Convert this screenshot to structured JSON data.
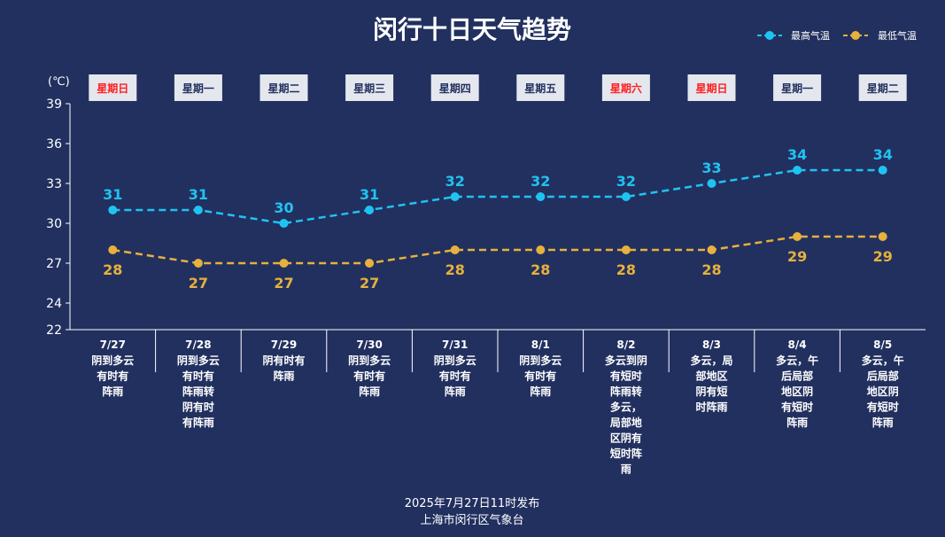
{
  "title": "闵行十日天气趋势",
  "legend": [
    {
      "name": "最高气温",
      "color": "#1fc3f2"
    },
    {
      "name": "最低气温",
      "color": "#e6b13c"
    }
  ],
  "unit_label": "(℃)",
  "colors": {
    "weekend": "#ff1e1e",
    "weekday": "#22305f",
    "axis": "#ffffff"
  },
  "chart_data": {
    "type": "line",
    "categories": [
      "7/27",
      "7/28",
      "7/29",
      "7/30",
      "7/31",
      "8/1",
      "8/2",
      "8/3",
      "8/4",
      "8/5"
    ],
    "weekdays": [
      "星期日",
      "星期一",
      "星期二",
      "星期三",
      "星期四",
      "星期五",
      "星期六",
      "星期日",
      "星期一",
      "星期二"
    ],
    "weekend": [
      true,
      false,
      false,
      false,
      false,
      false,
      true,
      true,
      false,
      false
    ],
    "descriptions": [
      [
        "阴到多云",
        "有时有",
        "阵雨"
      ],
      [
        "阴到多云",
        "有时有",
        "阵雨转",
        "阴有时",
        "有阵雨"
      ],
      [
        "阴有时有",
        "阵雨"
      ],
      [
        "阴到多云",
        "有时有",
        "阵雨"
      ],
      [
        "阴到多云",
        "有时有",
        "阵雨"
      ],
      [
        "阴到多云",
        "有时有",
        "阵雨"
      ],
      [
        "多云到阴",
        "有短时",
        "阵雨转",
        "多云，",
        "局部地",
        "区阴有",
        "短时阵",
        "雨"
      ],
      [
        "多云，局",
        "部地区",
        "阴有短",
        "时阵雨"
      ],
      [
        "多云，午",
        "后局部",
        "地区阴",
        "有短时",
        "阵雨"
      ],
      [
        "多云，午",
        "后局部",
        "地区阴",
        "有短时",
        "阵雨"
      ]
    ],
    "series": [
      {
        "name": "最高气温",
        "values": [
          31,
          31,
          30,
          31,
          32,
          32,
          32,
          33,
          34,
          34
        ],
        "color": "#1fc3f2"
      },
      {
        "name": "最低气温",
        "values": [
          28,
          27,
          27,
          27,
          28,
          28,
          28,
          28,
          29,
          29
        ],
        "color": "#e6b13c"
      }
    ],
    "yticks": [
      22,
      24,
      27,
      30,
      33,
      36,
      39
    ],
    "ylim": [
      22,
      39
    ],
    "grid": false,
    "legend_position": "top-right"
  },
  "footer": {
    "issued": "2025年7月27日11时发布",
    "agency": "上海市闵行区气象台"
  }
}
